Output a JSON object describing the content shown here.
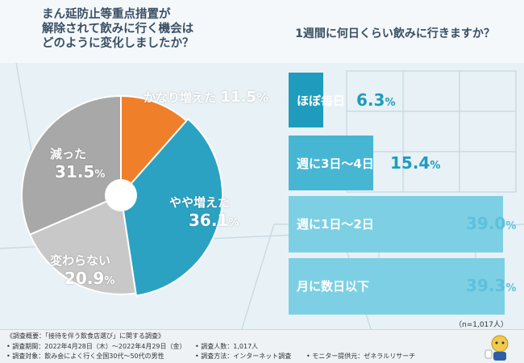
{
  "left_title": "まん延防止等重点措置が\n解除されて飲みに行く機会は\nどのように変化しましたか？",
  "right_title": "1週間に何日くらい飲みに行きますか？",
  "chart_data": [
    {
      "type": "pie",
      "title": "まん延防止等重点措置が解除されて飲みに行く機会はどのように変化しましたか？",
      "categories": [
        "かなり増えた",
        "やや増えた",
        "変わらない",
        "減った"
      ],
      "values": [
        11.5,
        36.1,
        20.9,
        31.5
      ],
      "unit": "%",
      "colors": [
        "#f07f2a",
        "#2ba2c2",
        "#c8c8c8",
        "#a8a8a8"
      ]
    },
    {
      "type": "bar",
      "orientation": "horizontal",
      "title": "1週間に何日くらい飲みに行きますか？",
      "categories": [
        "ほぼ毎日",
        "週に3日〜4日",
        "週に1日〜2日",
        "月に数日以下"
      ],
      "values": [
        6.3,
        15.4,
        39.0,
        39.3
      ],
      "unit": "%",
      "colors": [
        "#1f9cbd",
        "#47b6d2",
        "#7dd0e4",
        "#7dd0e4"
      ],
      "note": "（n=1,017人）"
    }
  ],
  "footer": {
    "overview": "《調査概要：「接待を伴う飲食店選び」に関する調査》",
    "period": "• 調査期間：2022年4月28日（木）〜2022年4月29日（金）",
    "target": "• 調査対象：飲み会によく行く全国30代〜50代の男性",
    "count": "• 調査人数：1,017人",
    "method": "• 調査方法：インターネット調査",
    "provider": "• モニター提供元：ゼネラルリサーチ"
  }
}
